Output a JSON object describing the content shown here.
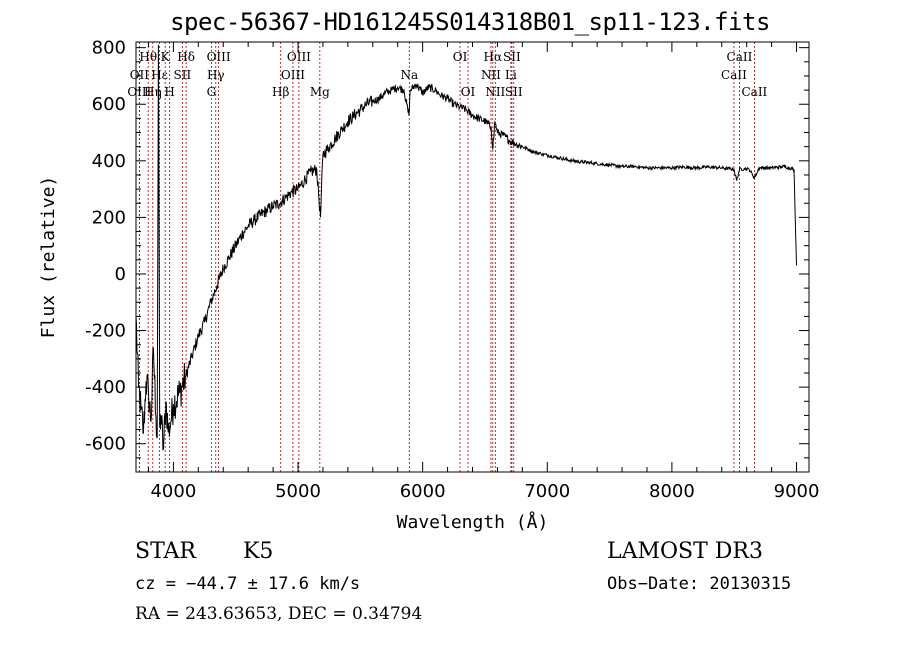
{
  "chart_data": {
    "type": "line",
    "title": "spec-56367-HD161245S014318B01_sp11-123.fits",
    "xlabel": "Wavelength (Å)",
    "ylabel": "Flux (relative)",
    "xlim": [
      3700,
      9100
    ],
    "ylim": [
      -700,
      820
    ],
    "xticks": [
      4000,
      5000,
      6000,
      7000,
      8000,
      9000
    ],
    "yticks": [
      -600,
      -400,
      -200,
      0,
      200,
      400,
      600,
      800
    ],
    "grid": false,
    "series": [
      {
        "line_color": "#000000",
        "x": [
          3700,
          3720,
          3740,
          3760,
          3780,
          3800,
          3820,
          3840,
          3860,
          3870,
          3880,
          3890,
          3900,
          3920,
          3940,
          3960,
          3980,
          4000,
          4050,
          4100,
          4150,
          4200,
          4250,
          4300,
          4350,
          4400,
          4450,
          4500,
          4550,
          4600,
          4650,
          4700,
          4750,
          4800,
          4850,
          4900,
          4950,
          5000,
          5050,
          5100,
          5150,
          5180,
          5200,
          5250,
          5300,
          5350,
          5400,
          5450,
          5500,
          5550,
          5600,
          5650,
          5700,
          5750,
          5800,
          5850,
          5890,
          5900,
          5950,
          6000,
          6050,
          6100,
          6150,
          6200,
          6250,
          6300,
          6350,
          6400,
          6450,
          6500,
          6550,
          6563,
          6580,
          6600,
          6650,
          6700,
          6750,
          6800,
          6850,
          6900,
          6950,
          7000,
          7100,
          7200,
          7300,
          7400,
          7500,
          7600,
          7700,
          7800,
          7900,
          8000,
          8100,
          8200,
          8300,
          8400,
          8498,
          8520,
          8542,
          8580,
          8620,
          8662,
          8700,
          8800,
          8900,
          8980,
          9000
        ],
        "y": [
          -150,
          -400,
          -480,
          -560,
          -380,
          -420,
          -520,
          -260,
          -500,
          -580,
          810,
          -540,
          -500,
          -620,
          -450,
          -560,
          -520,
          -460,
          -420,
          -360,
          -290,
          -220,
          -170,
          -100,
          -40,
          20,
          60,
          100,
          140,
          170,
          190,
          210,
          225,
          240,
          250,
          270,
          290,
          300,
          330,
          360,
          370,
          200,
          420,
          450,
          480,
          510,
          540,
          560,
          580,
          600,
          610,
          620,
          640,
          650,
          660,
          650,
          560,
          650,
          670,
          640,
          660,
          650,
          630,
          620,
          600,
          590,
          580,
          560,
          550,
          540,
          520,
          440,
          540,
          500,
          490,
          470,
          460,
          450,
          440,
          430,
          425,
          420,
          410,
          400,
          395,
          390,
          385,
          380,
          380,
          375,
          375,
          375,
          378,
          375,
          378,
          375,
          370,
          330,
          370,
          372,
          370,
          340,
          375,
          375,
          380,
          370,
          30
        ]
      }
    ],
    "lines": [
      {
        "label": "Hθ",
        "x": 3798,
        "row": 1
      },
      {
        "label": "OII",
        "x": 3727,
        "row": 2
      },
      {
        "label": "OIII",
        "x": 3727,
        "row": 3
      },
      {
        "label": "K",
        "x": 3934,
        "row": 1
      },
      {
        "label": "Hε",
        "x": 3889,
        "row": 2
      },
      {
        "label": "Hη",
        "x": 3835,
        "row": 3
      },
      {
        "label": "H",
        "x": 3970,
        "row": 3
      },
      {
        "label": "Hδ",
        "x": 4102,
        "row": 1
      },
      {
        "label": "SII",
        "x": 4072,
        "row": 2
      },
      {
        "label": "OIII",
        "x": 4363,
        "row": 1
      },
      {
        "label": "Hγ",
        "x": 4340,
        "row": 2
      },
      {
        "label": "G",
        "x": 4305,
        "row": 3
      },
      {
        "label": "OIII",
        "x": 5007,
        "row": 1
      },
      {
        "label": "OIII",
        "x": 4959,
        "row": 2
      },
      {
        "label": "Hβ",
        "x": 4861,
        "row": 3
      },
      {
        "label": "Mg",
        "x": 5175,
        "row": 3
      },
      {
        "label": "Na",
        "x": 5893,
        "row": 2
      },
      {
        "label": "OI",
        "x": 6300,
        "row": 1
      },
      {
        "label": "OI",
        "x": 6364,
        "row": 3
      },
      {
        "label": "Hα",
        "x": 6563,
        "row": 1
      },
      {
        "label": "SII",
        "x": 6716,
        "row": 1
      },
      {
        "label": "NII",
        "x": 6548,
        "row": 2
      },
      {
        "label": "Li",
        "x": 6708,
        "row": 2
      },
      {
        "label": "NII",
        "x": 6583,
        "row": 3
      },
      {
        "label": "SII",
        "x": 6731,
        "row": 3
      },
      {
        "label": "CaII",
        "x": 8542,
        "row": 1
      },
      {
        "label": "CaII",
        "x": 8498,
        "row": 2
      },
      {
        "label": "CaII",
        "x": 8662,
        "row": 3
      }
    ]
  },
  "info": {
    "class": "STAR",
    "subclass": "K5",
    "survey": "LAMOST DR3",
    "cz": "cz = −44.7 ± 17.6 km/s",
    "obs_date": "Obs−Date: 20130315",
    "radec": "RA = 243.63653, DEC =    0.34794"
  },
  "colors": {
    "marker_line": "#aa0000",
    "spectrum": "#000000"
  }
}
